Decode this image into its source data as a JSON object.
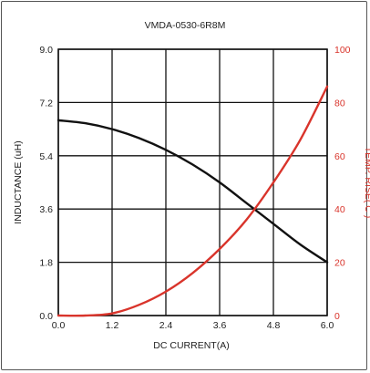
{
  "chart_data": {
    "type": "line",
    "title": "VMDA-0530-6R8M",
    "xlabel": "DC CURRENT(A)",
    "ylabel_left": "INDUCTANCE (uH)",
    "ylabel_right": "TEMP. RISE( C )",
    "xlim": [
      0,
      6.0
    ],
    "ylim_left": [
      0,
      9.0
    ],
    "ylim_right": [
      0,
      100
    ],
    "x_ticks": [
      "0.0",
      "1.2",
      "2.4",
      "3.6",
      "4.8",
      "6.0"
    ],
    "y_ticks_left": [
      "0.0",
      "1.8",
      "3.6",
      "5.4",
      "7.2",
      "9.0"
    ],
    "y_ticks_right": [
      "0",
      "20",
      "40",
      "60",
      "80",
      "100"
    ],
    "grid": true,
    "series": [
      {
        "name": "",
        "axis": "left",
        "color": "#111111",
        "x": [
          0,
          0.6,
          1.2,
          1.8,
          2.4,
          3.0,
          3.6,
          4.2,
          4.8,
          5.4,
          6.0
        ],
        "y": [
          6.6,
          6.5,
          6.3,
          6.0,
          5.6,
          5.1,
          4.5,
          3.8,
          3.1,
          2.4,
          1.8
        ]
      },
      {
        "name": "",
        "axis": "right",
        "color": "#d9342b",
        "x": [
          0,
          0.6,
          1.2,
          1.8,
          2.4,
          3.0,
          3.6,
          4.2,
          4.8,
          5.4,
          6.0
        ],
        "y": [
          0,
          0,
          0.8,
          4,
          9,
          16,
          25,
          36,
          50,
          66,
          86
        ]
      }
    ],
    "colors": {
      "left_axis": "#222222",
      "right_axis": "#d9342b",
      "grid": "#111111"
    }
  }
}
